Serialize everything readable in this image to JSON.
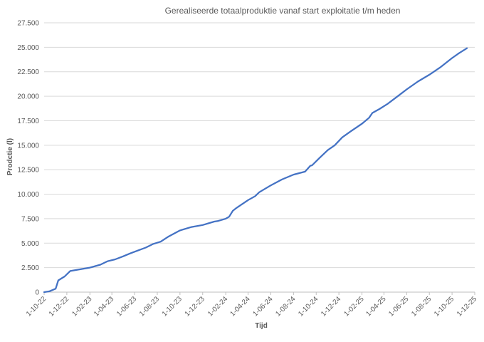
{
  "chart_data": {
    "type": "line",
    "title": "Gerealiseerde totaalproduktie  vanaf start exploitatie t/m heden",
    "xlabel": "Tijd",
    "ylabel": "Prodctie (l)",
    "ylim": [
      0,
      27500
    ],
    "y_ticks": [
      "0",
      "2.500",
      "5.000",
      "7.500",
      "10.000",
      "12.500",
      "15.000",
      "17.500",
      "20.000",
      "22.500",
      "25.000",
      "27.500"
    ],
    "x_ticks": [
      "1-10-22",
      "1-12-22",
      "1-02-23",
      "1-04-23",
      "1-06-23",
      "1-08-23",
      "1-10-23",
      "1-12-23",
      "1-02-24",
      "1-04-24",
      "1-06-24",
      "1-08-24",
      "1-10-24",
      "1-12-24",
      "1-02-25",
      "1-04-25",
      "1-06-25",
      "1-08-25",
      "1-10-25",
      "1-12-25"
    ],
    "grid": "horizontal",
    "legend": "none",
    "line_color": "#4472c4",
    "series": [
      {
        "x": [
          "2022-10-01",
          "2022-10-15",
          "2022-11-01",
          "2022-11-08",
          "2022-11-25",
          "2022-12-10",
          "2023-01-01",
          "2023-02-01",
          "2023-03-01",
          "2023-03-20",
          "2023-04-10",
          "2023-05-01",
          "2023-05-20",
          "2023-06-10",
          "2023-07-01",
          "2023-07-20",
          "2023-08-10",
          "2023-09-01",
          "2023-10-01",
          "2023-11-01",
          "2023-12-01",
          "2024-01-01",
          "2024-01-10",
          "2024-02-01",
          "2024-02-10",
          "2024-02-20",
          "2024-03-01",
          "2024-04-01",
          "2024-04-20",
          "2024-05-01",
          "2024-06-01",
          "2024-07-01",
          "2024-08-01",
          "2024-09-01",
          "2024-09-15",
          "2024-09-20",
          "2024-10-10",
          "2024-11-01",
          "2024-11-20",
          "2024-12-10",
          "2025-01-01",
          "2025-02-01",
          "2025-02-20",
          "2025-03-01",
          "2025-03-20",
          "2025-04-10",
          "2025-05-01",
          "2025-05-15",
          "2025-06-01",
          "2025-07-01",
          "2025-08-01",
          "2025-09-01",
          "2025-10-01",
          "2025-10-20",
          "2025-11-10"
        ],
        "y": [
          0,
          80,
          350,
          1200,
          1600,
          2150,
          2300,
          2500,
          2800,
          3150,
          3350,
          3650,
          3950,
          4250,
          4550,
          4900,
          5150,
          5700,
          6300,
          6650,
          6850,
          7200,
          7250,
          7500,
          7700,
          8300,
          8600,
          9400,
          9800,
          10200,
          10900,
          11500,
          12000,
          12300,
          12900,
          12950,
          13700,
          14500,
          15000,
          15800,
          16400,
          17200,
          17800,
          18300,
          18700,
          19200,
          19800,
          20200,
          20700,
          21500,
          22200,
          23000,
          23900,
          24400,
          24900
        ]
      }
    ]
  }
}
